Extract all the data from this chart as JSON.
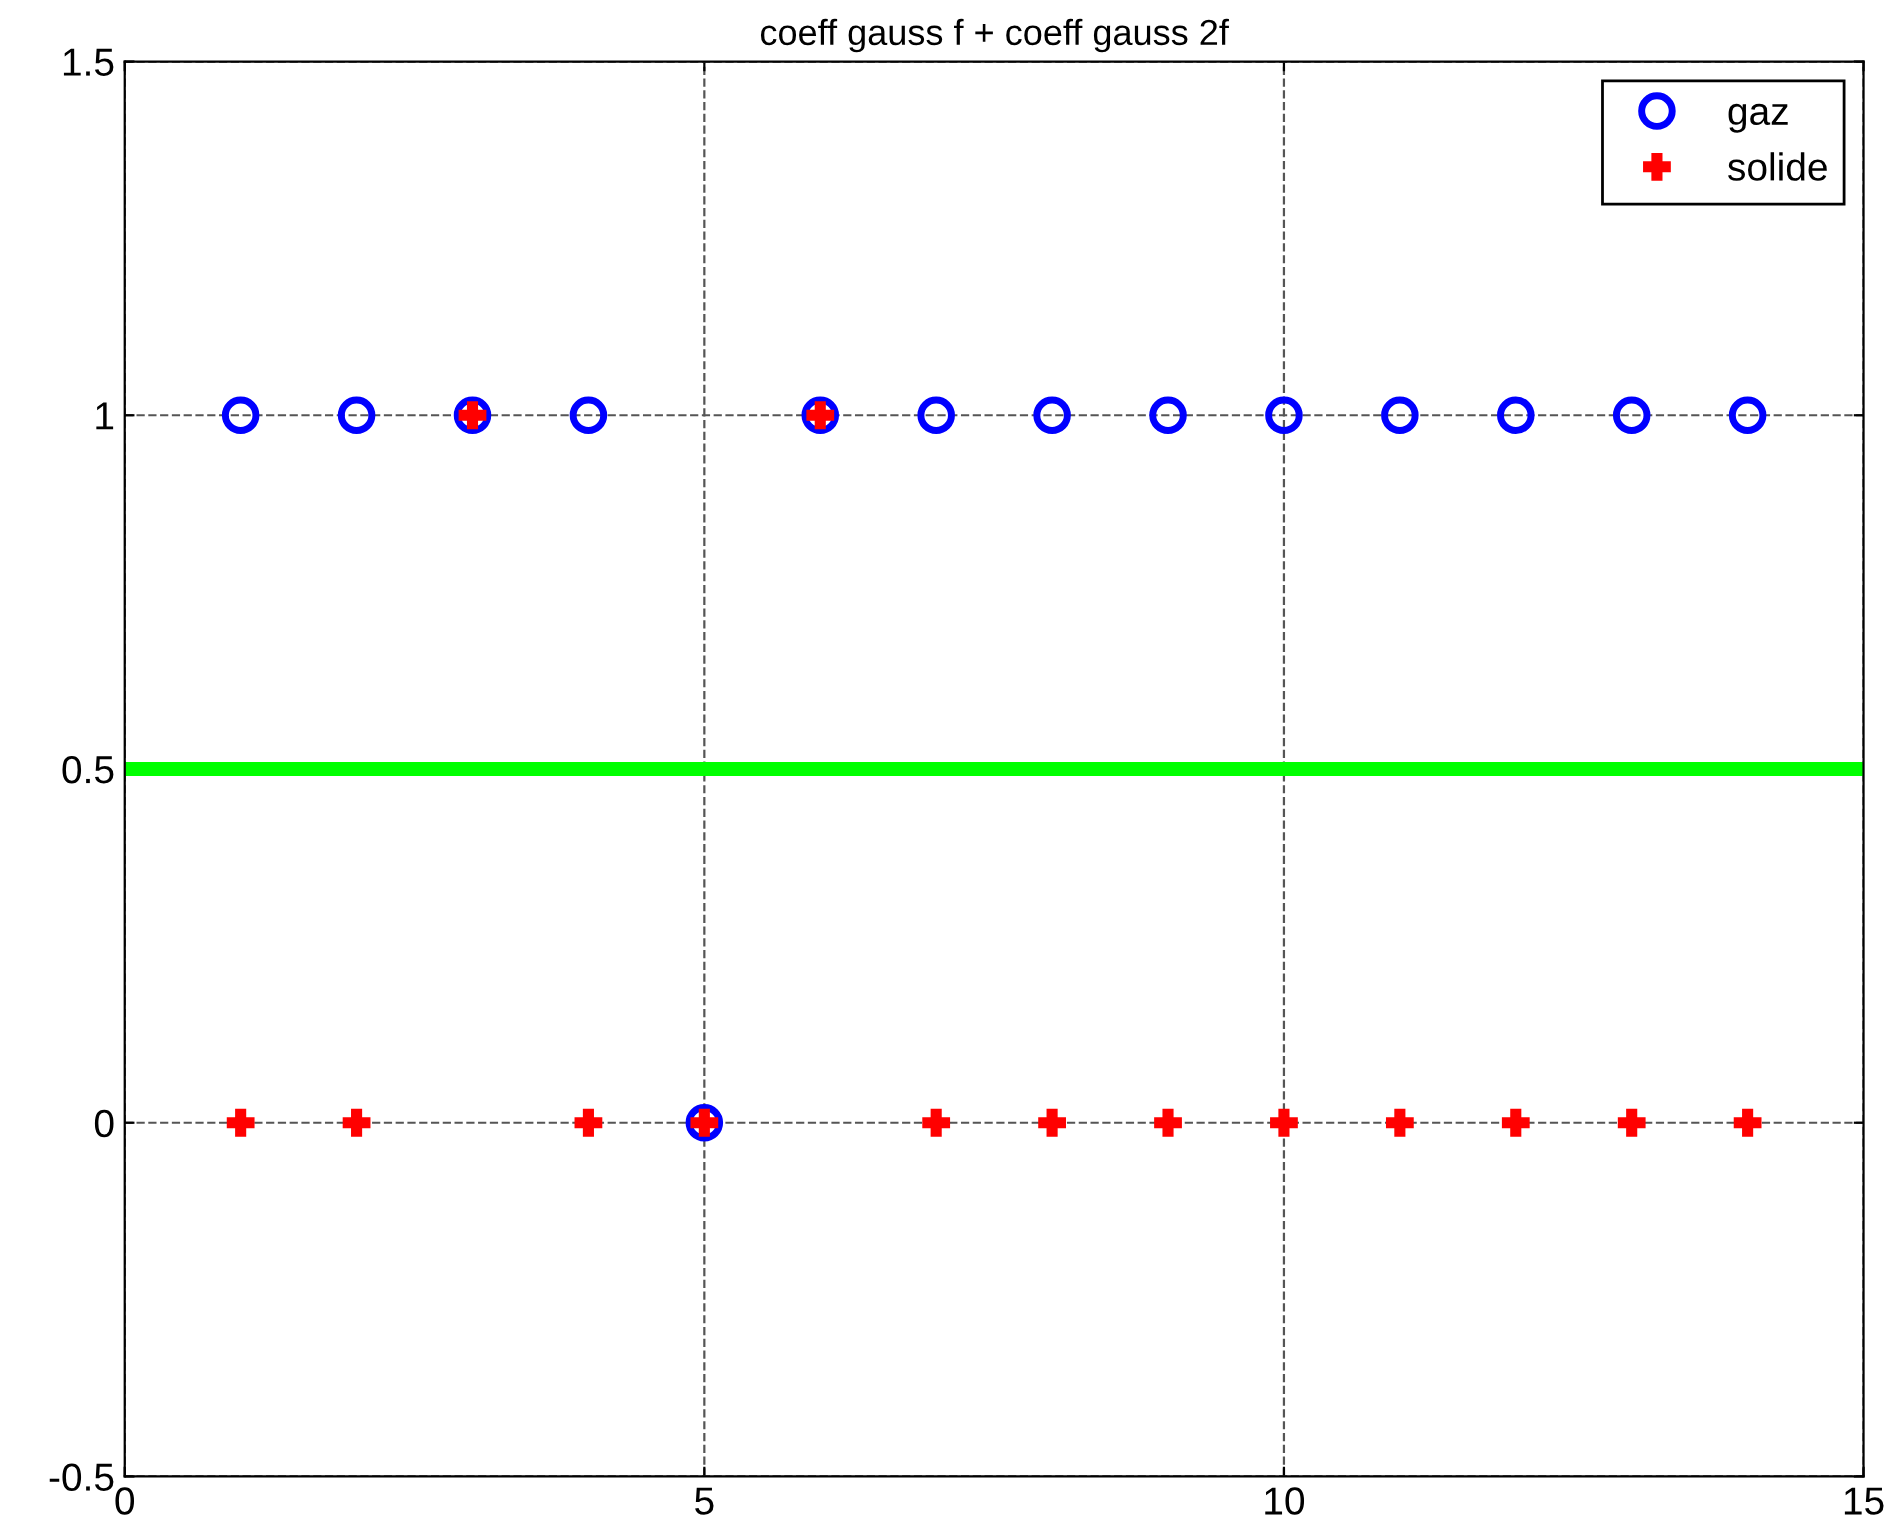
{
  "chart_data": {
    "type": "scatter",
    "title": "coeff gauss f + coeff gauss 2f",
    "x": [
      1,
      2,
      3,
      4,
      5,
      6,
      7,
      8,
      9,
      10,
      11,
      12,
      13,
      14
    ],
    "series": [
      {
        "name": "gaz",
        "color": "#0000ff",
        "marker": "circle",
        "values": [
          1,
          1,
          1,
          1,
          0,
          1,
          1,
          1,
          1,
          1,
          1,
          1,
          1,
          1
        ]
      },
      {
        "name": "solide",
        "color": "#ff0000",
        "marker": "cross",
        "values": [
          0,
          0,
          1,
          0,
          0,
          1,
          0,
          0,
          0,
          0,
          0,
          0,
          0,
          0
        ]
      }
    ],
    "xlim": [
      0,
      15
    ],
    "xticks": [
      0,
      5,
      10,
      15
    ],
    "ylim": [
      -0.5,
      1.5
    ],
    "yticks": [
      -0.5,
      0,
      0.5,
      1,
      1.5
    ],
    "ref_lines": [
      {
        "axis": "y",
        "value": 0.5,
        "color": "#00ff00"
      }
    ],
    "grid": true,
    "legend": "top right"
  }
}
